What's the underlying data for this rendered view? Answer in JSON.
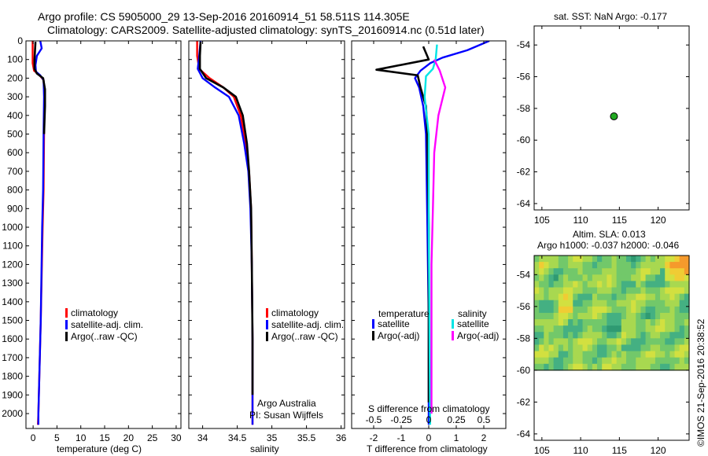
{
  "header": {
    "line1": "Argo profile: CS 5905000_29 13-Sep-2016 20160914_51 58.511S 114.305E",
    "line2": "Climatology: CARS2009. Satellite-adjusted climatology: synTS_20160914.nc (0.51d later)"
  },
  "credit": "©IMOS 21-Sep-2016 20:38:52",
  "chart_data": [
    {
      "id": "temperature",
      "type": "line",
      "xlabel": "temperature (deg C)",
      "xlim": [
        -1.5,
        31
      ],
      "ylim": [
        2080,
        0
      ],
      "xticks": [
        0,
        5,
        10,
        15,
        20,
        25,
        30
      ],
      "yticks": [
        0,
        100,
        200,
        300,
        400,
        500,
        600,
        700,
        800,
        900,
        1000,
        1100,
        1200,
        1300,
        1400,
        1500,
        1600,
        1700,
        1800,
        1900,
        2000
      ],
      "legend": [
        "climatology",
        "satellite-adj. clim.",
        "Argo(..raw -QC)"
      ],
      "series": [
        {
          "name": "climatology",
          "color": "#ff0000",
          "points": [
            [
              -0.1,
              0
            ],
            [
              -0.1,
              50
            ],
            [
              -0.1,
              120
            ],
            [
              0.2,
              160
            ],
            [
              1.2,
              180
            ],
            [
              2.2,
              210
            ],
            [
              2.4,
              300
            ],
            [
              2.3,
              500
            ],
            [
              2.2,
              800
            ],
            [
              2.0,
              1000
            ],
            [
              1.6,
              1500
            ],
            [
              1.3,
              1800
            ],
            [
              1.1,
              2000
            ],
            [
              1.0,
              2060
            ]
          ]
        },
        {
          "name": "satellite-adj. clim.",
          "color": "#0000ff",
          "points": [
            [
              1.5,
              0
            ],
            [
              1.8,
              40
            ],
            [
              0.8,
              80
            ],
            [
              0.5,
              130
            ],
            [
              0.6,
              165
            ],
            [
              1.5,
              185
            ],
            [
              2.2,
              210
            ],
            [
              2.3,
              300
            ],
            [
              2.2,
              500
            ],
            [
              2.1,
              800
            ],
            [
              1.9,
              1000
            ],
            [
              1.6,
              1500
            ],
            [
              1.3,
              1800
            ],
            [
              1.1,
              2000
            ],
            [
              1.1,
              2060
            ]
          ]
        },
        {
          "name": "Argo(..raw -QC)",
          "color": "#000000",
          "points": [
            [
              0.5,
              5
            ],
            [
              0.4,
              50
            ],
            [
              0.3,
              100
            ],
            [
              0.3,
              150
            ],
            [
              0.8,
              175
            ],
            [
              2.1,
              200
            ],
            [
              2.5,
              260
            ],
            [
              2.5,
              350
            ],
            [
              2.3,
              500
            ]
          ]
        }
      ]
    },
    {
      "id": "salinity",
      "type": "line",
      "xlabel": "salinity",
      "xlim": [
        33.8,
        36.05
      ],
      "ylim": [
        2080,
        0
      ],
      "xticks": [
        34,
        34.5,
        35,
        35.5,
        36
      ],
      "xticklabels": [
        "34",
        "34.5",
        "35",
        "35.5",
        "36"
      ],
      "legend": [
        "climatology",
        "satellite-adj. clim.",
        "Argo(..raw -QC)"
      ],
      "annotation": [
        "Argo Australia",
        "PI: Susan Wijffels"
      ],
      "series": [
        {
          "name": "climatology",
          "color": "#ff0000",
          "points": [
            [
              33.92,
              0
            ],
            [
              33.92,
              80
            ],
            [
              33.95,
              150
            ],
            [
              34.1,
              200
            ],
            [
              34.3,
              250
            ],
            [
              34.45,
              300
            ],
            [
              34.55,
              400
            ],
            [
              34.62,
              550
            ],
            [
              34.67,
              700
            ],
            [
              34.7,
              900
            ],
            [
              34.71,
              1200
            ],
            [
              34.72,
              1600
            ],
            [
              34.72,
              2060
            ]
          ]
        },
        {
          "name": "satellite-adj. clim.",
          "color": "#0000ff",
          "points": [
            [
              33.97,
              0
            ],
            [
              33.95,
              80
            ],
            [
              33.93,
              150
            ],
            [
              34.0,
              200
            ],
            [
              34.18,
              250
            ],
            [
              34.38,
              300
            ],
            [
              34.52,
              400
            ],
            [
              34.6,
              550
            ],
            [
              34.66,
              700
            ],
            [
              34.69,
              900
            ],
            [
              34.71,
              1200
            ],
            [
              34.72,
              1600
            ],
            [
              34.72,
              2060
            ]
          ]
        },
        {
          "name": "Argo(..raw -QC)",
          "color": "#000000",
          "points": [
            [
              33.97,
              5
            ],
            [
              33.96,
              80
            ],
            [
              33.96,
              150
            ],
            [
              34.05,
              200
            ],
            [
              34.3,
              250
            ],
            [
              34.48,
              300
            ],
            [
              34.58,
              400
            ],
            [
              34.64,
              550
            ],
            [
              34.67,
              700
            ],
            [
              34.7,
              900
            ],
            [
              34.71,
              1200
            ],
            [
              34.72,
              1600
            ],
            [
              34.72,
              1900
            ]
          ]
        }
      ]
    },
    {
      "id": "difference",
      "type": "line",
      "xlabel": "T difference from climatology",
      "xlabel_top": "S difference from climatology",
      "xlim": [
        -2.8,
        2.8
      ],
      "ylim": [
        2080,
        0
      ],
      "xticks": [
        -2,
        -1,
        0,
        1,
        2
      ],
      "top_ticklabels": [
        "-0.5",
        "-0.25",
        "0",
        "0.25",
        "0.5"
      ],
      "legend_titles": [
        "temperature",
        "salinity"
      ],
      "legend": [
        "satellite",
        "Argo(-adj)",
        "satellite",
        "Argo(-adj)"
      ],
      "series": [
        {
          "name": "satellite",
          "group": "temperature",
          "color": "#0000ff",
          "points": [
            [
              2.2,
              0
            ],
            [
              1.4,
              50
            ],
            [
              0.5,
              90
            ],
            [
              0.05,
              120
            ],
            [
              -0.3,
              160
            ],
            [
              -0.5,
              200
            ],
            [
              -0.35,
              250
            ],
            [
              -0.2,
              350
            ],
            [
              -0.1,
              500
            ],
            [
              -0.05,
              1000
            ],
            [
              0,
              1500
            ],
            [
              0,
              2060
            ]
          ]
        },
        {
          "name": "Argo(-adj)",
          "group": "temperature",
          "color": "#000000",
          "points": [
            [
              -0.2,
              30
            ],
            [
              0,
              100
            ],
            [
              -1.9,
              155
            ],
            [
              -0.4,
              185
            ],
            [
              -0.3,
              250
            ],
            [
              -0.1,
              350
            ],
            [
              -0.05,
              500
            ],
            [
              0,
              1000
            ],
            [
              0,
              1500
            ],
            [
              0,
              1940
            ]
          ]
        },
        {
          "name": "satellite",
          "group": "salinity",
          "color": "#00e5e5",
          "points": [
            [
              0.3,
              20
            ],
            [
              0.25,
              100
            ],
            [
              0.15,
              150
            ],
            [
              -0.1,
              190
            ],
            [
              -0.15,
              300
            ],
            [
              0,
              500
            ],
            [
              0,
              1000
            ],
            [
              0.05,
              2060
            ]
          ]
        },
        {
          "name": "Argo(-adj)",
          "group": "salinity",
          "color": "#ff00ff",
          "points": [
            [
              0.2,
              100
            ],
            [
              0.4,
              160
            ],
            [
              0.6,
              250
            ],
            [
              0.35,
              400
            ],
            [
              0.2,
              600
            ],
            [
              0.15,
              900
            ],
            [
              0.1,
              1200
            ],
            [
              0.1,
              2000
            ]
          ]
        }
      ]
    },
    {
      "id": "sst",
      "type": "scatter",
      "title": "sat. SST: NaN Argo: -0.177",
      "xlim": [
        104,
        124
      ],
      "ylim": [
        -64.4,
        -52.8
      ],
      "xticks": [
        105,
        110,
        115,
        120
      ],
      "yticks": [
        -54,
        -56,
        -58,
        -60,
        -62,
        -64
      ],
      "points": [
        [
          114.3,
          -58.5
        ]
      ],
      "marker_color": "#22aa22"
    },
    {
      "id": "sla",
      "type": "heatmap",
      "title1": "Altim. SLA: 0.013",
      "title2": "Argo h1000: -0.037 h2000: -0.046",
      "xlim": [
        104,
        124
      ],
      "ylim": [
        -64.4,
        -52.8
      ],
      "data_bottom": -60,
      "xticks": [
        105,
        110,
        115,
        120
      ],
      "yticks": [
        -54,
        -56,
        -58,
        -60,
        -62,
        -64
      ],
      "colors": [
        "#2f9a72",
        "#44b082",
        "#72c86a",
        "#a8d850",
        "#d2e040",
        "#f0cc34",
        "#f59a2c"
      ]
    }
  ]
}
